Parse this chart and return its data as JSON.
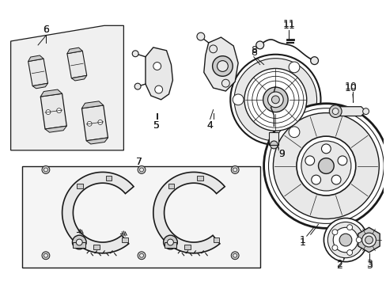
{
  "bg_color": "#ffffff",
  "fig_width": 4.89,
  "fig_height": 3.6,
  "dpi": 100,
  "line_color": "#1a1a1a",
  "gray_light": "#e8e8e8",
  "gray_mid": "#cccccc",
  "gray_dark": "#aaaaaa"
}
